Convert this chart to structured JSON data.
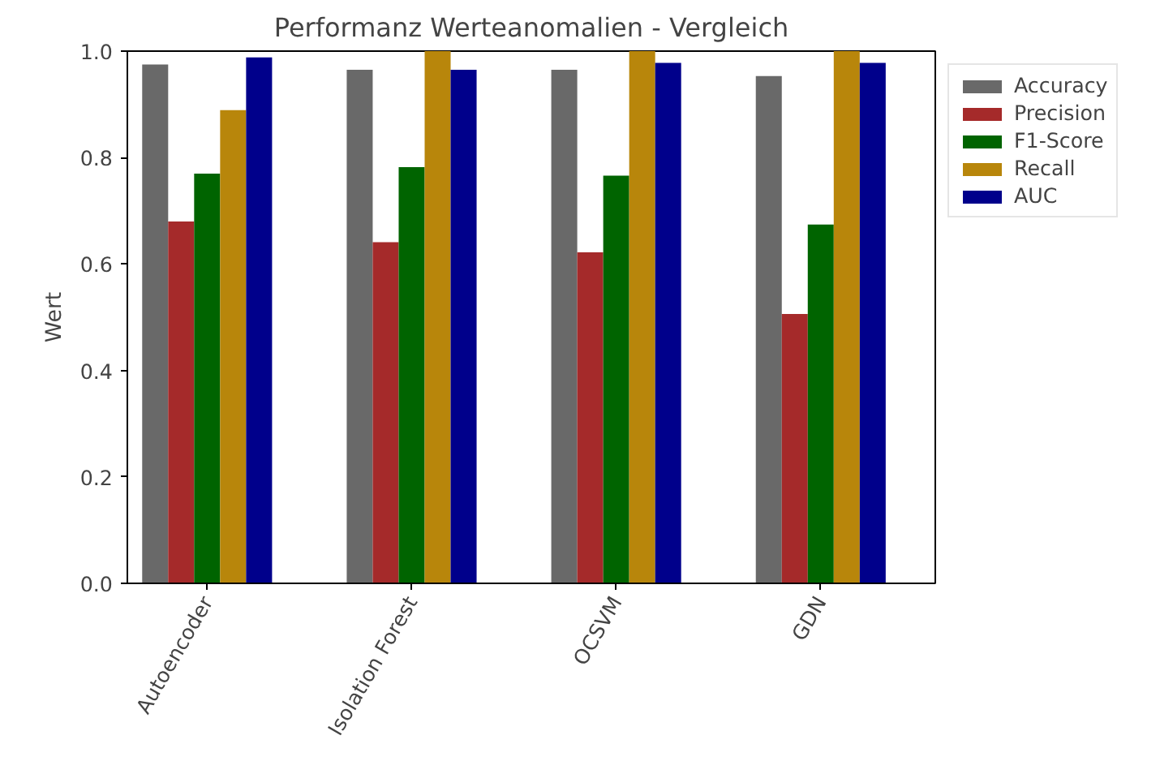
{
  "chart_data": {
    "type": "bar",
    "title": "Performanz Werteanomalien - Vergleich",
    "ylabel": "Wert",
    "categories": [
      "Autoencoder",
      "Isolation Forest",
      "OCSVM",
      "GDN"
    ],
    "series": [
      {
        "name": "Accuracy",
        "color": "#696969",
        "values": [
          0.975,
          0.965,
          0.965,
          0.953
        ]
      },
      {
        "name": "Precision",
        "color": "#a52a2a",
        "values": [
          0.68,
          0.641,
          0.622,
          0.506
        ]
      },
      {
        "name": "F1-Score",
        "color": "#006400",
        "values": [
          0.77,
          0.782,
          0.766,
          0.674
        ]
      },
      {
        "name": "Recall",
        "color": "#b8860b",
        "values": [
          0.889,
          1.0,
          1.0,
          1.0
        ]
      },
      {
        "name": "AUC",
        "color": "#00008b",
        "values": [
          0.988,
          0.965,
          0.978,
          0.978
        ]
      }
    ],
    "ylim": [
      0,
      1
    ],
    "yticks": [
      {
        "value": 0,
        "label": "0.0"
      },
      0.2,
      0.4,
      0.6,
      0.8,
      {
        "value": 1,
        "label": "1.0"
      }
    ],
    "grid": false,
    "legend": "top right"
  }
}
